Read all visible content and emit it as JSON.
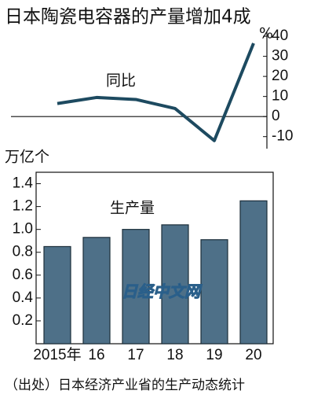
{
  "title": "日本陶瓷电容器的产量增加4成",
  "source": "（出处）日本经济产业省的生产动态统计",
  "watermark": "日经中文网",
  "chart_data": [
    {
      "type": "line",
      "series_label": "同比",
      "y_unit": "%",
      "color": "#1d4a60",
      "values": [
        6.5,
        9.5,
        8.5,
        4,
        -12,
        36.5
      ],
      "ylim": [
        -16,
        42
      ],
      "yticks": [
        -10,
        0,
        10,
        20,
        30,
        40
      ]
    },
    {
      "type": "bar",
      "series_label": "生产量",
      "y_unit": "万亿个",
      "color": "#4e7088",
      "categories": [
        "2015年",
        "16",
        "17",
        "18",
        "19",
        "20"
      ],
      "values": [
        0.85,
        0.93,
        1.0,
        1.04,
        0.91,
        1.25
      ],
      "ylim": [
        0,
        1.5
      ],
      "yticks": [
        0.2,
        0.4,
        0.6,
        0.8,
        {
          "value": 1,
          "label": "1.0"
        },
        1.2,
        1.4
      ]
    }
  ]
}
